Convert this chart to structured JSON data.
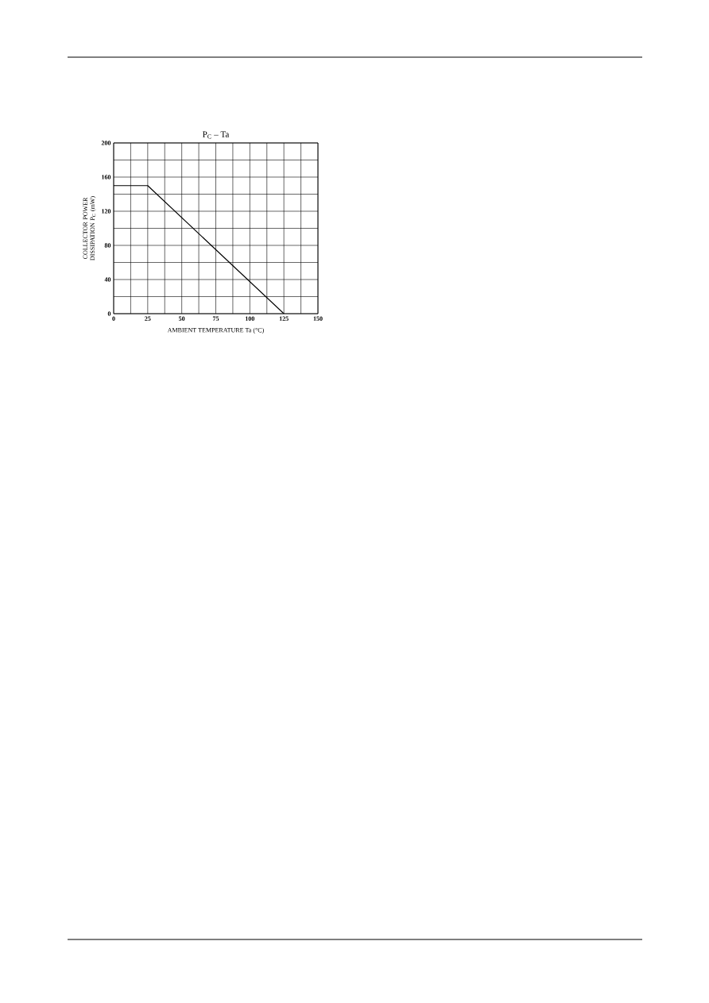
{
  "chart_data": {
    "type": "line",
    "title": "P$_{C}$ – Ta",
    "xlabel": "AMBIENT TEMPERATURE   Ta   (°C)",
    "ylabel": "COLLECTOR POWER DISSIPATION P$_{C}$   (mW)",
    "x": [
      0,
      25,
      125
    ],
    "series": [
      {
        "color": "#000000",
        "values": [
          150,
          150,
          0
        ]
      }
    ],
    "xlim": [
      0,
      150
    ],
    "ylim": [
      0,
      200
    ],
    "xticks": [
      0,
      {
        "value": 12.5,
        "label": null
      },
      25,
      {
        "value": 37.5,
        "label": null
      },
      50,
      {
        "value": 62.5,
        "label": null
      },
      75,
      {
        "value": 87.5,
        "label": null
      },
      100,
      {
        "value": 112.5,
        "label": null
      },
      125,
      {
        "value": 137.5,
        "label": null
      },
      150
    ],
    "yticks": [
      0,
      {
        "value": 20,
        "label": null
      },
      40,
      {
        "value": 60,
        "label": null
      },
      80,
      {
        "value": 100,
        "label": null
      },
      120,
      {
        "value": 140,
        "label": null
      },
      160,
      {
        "value": 180,
        "label": null
      },
      200
    ],
    "grid": true,
    "marker": "none",
    "line_style": "solid"
  }
}
